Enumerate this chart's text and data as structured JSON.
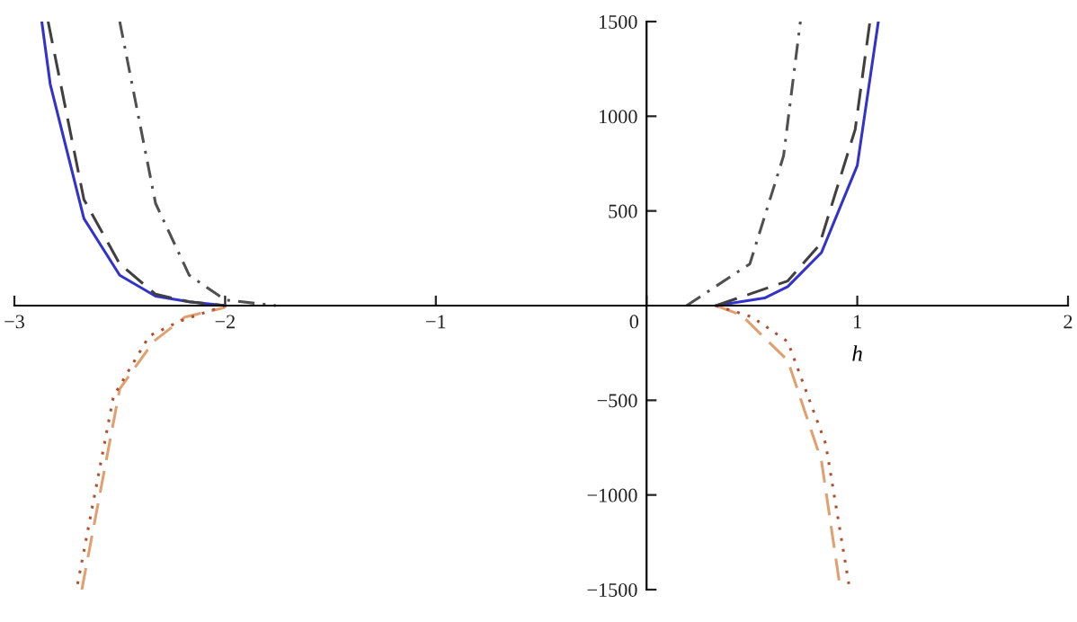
{
  "chart_data": {
    "type": "line",
    "xlabel": "h",
    "xlim": [
      -3,
      2
    ],
    "ylim": [
      -1500,
      1500
    ],
    "xticks": [
      {
        "value": -3,
        "label": "−3"
      },
      {
        "value": -2,
        "label": "−2"
      },
      {
        "value": -1,
        "label": "−1"
      },
      0,
      1,
      2
    ],
    "yticks": [
      {
        "value": -1500,
        "label": "−1500"
      },
      {
        "value": -1000,
        "label": "−1000"
      },
      {
        "value": -500,
        "label": "−500"
      },
      500,
      1000,
      1500
    ],
    "grid": false,
    "legend": false,
    "series": [
      {
        "color": "#3333cc",
        "line_style": "solid",
        "x": [
          -2.87,
          -2.83,
          -2.67,
          -2.5,
          -2.33,
          -2.17,
          -2.0,
          null,
          0.33,
          0.56,
          0.67,
          0.83,
          1.0,
          1.1
        ],
        "values": [
          1500,
          1170,
          460,
          160,
          50,
          20,
          0,
          null,
          0,
          40,
          100,
          280,
          740,
          1500
        ]
      },
      {
        "color": "#404040",
        "line_style": "dashed",
        "x": [
          -2.84,
          -2.67,
          -2.5,
          -2.33,
          -2.17,
          -2.0,
          null,
          0.33,
          0.67,
          0.82,
          0.99,
          1.06
        ],
        "values": [
          1500,
          560,
          220,
          60,
          20,
          0,
          null,
          0,
          130,
          320,
          930,
          1500
        ]
      },
      {
        "color": "#505050",
        "line_style": "dashdot",
        "x": [
          -2.5,
          -2.33,
          -2.17,
          -2.0,
          -1.76,
          null,
          0.19,
          0.49,
          0.65,
          0.73
        ],
        "values": [
          1500,
          540,
          160,
          30,
          0,
          null,
          0,
          220,
          790,
          1500
        ]
      },
      {
        "color": "#e0a070",
        "line_style": "dashed",
        "x": [
          -2.68,
          -2.5,
          -2.34,
          -2.19,
          -2.0,
          null,
          0.33,
          0.45,
          0.67,
          0.83,
          0.92
        ],
        "values": [
          -1500,
          -440,
          -190,
          -60,
          -10,
          null,
          0,
          -50,
          -290,
          -820,
          -1500
        ]
      },
      {
        "color": "#b05030",
        "line_style": "dotted",
        "x": [
          -2.7,
          -2.53,
          -2.36,
          -2.21,
          -2.0,
          null,
          0.33,
          0.5,
          0.67,
          0.85,
          0.96
        ],
        "values": [
          -1470,
          -480,
          -160,
          -80,
          0,
          null,
          0,
          -60,
          -190,
          -730,
          -1470
        ]
      }
    ]
  }
}
